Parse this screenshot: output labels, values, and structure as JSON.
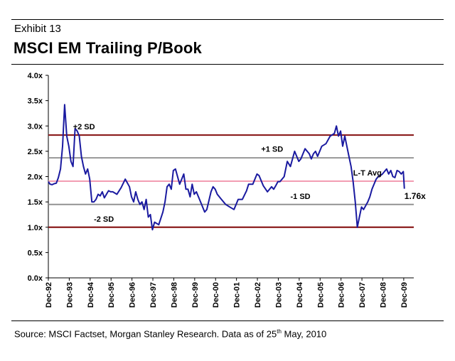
{
  "header": {
    "exhibit": "Exhibit 13",
    "title": "MSCI EM Trailing P/Book"
  },
  "footer": {
    "source_prefix": "Source: MSCI Factset, Morgan Stanley Research. Data as of 25",
    "source_sup": "th",
    "source_suffix": " May, 2010"
  },
  "colors": {
    "series": "#1a1aa0",
    "sd2": "#8b1c1c",
    "sd1": "#8c8c8c",
    "avg": "#f2a0b4",
    "axis": "#000000"
  },
  "chart_data": {
    "type": "line",
    "title": "MSCI EM Trailing P/Book",
    "xlabel": "",
    "ylabel": "",
    "ylim": [
      0,
      4
    ],
    "xlim": [
      1992.92,
      2010.4
    ],
    "y_ticks": [
      "0.0x",
      "0.5x",
      "1.0x",
      "1.5x",
      "2.0x",
      "2.5x",
      "3.0x",
      "3.5x",
      "4.0x"
    ],
    "x_ticks": [
      {
        "label": "Dec-92",
        "x": 1992.92
      },
      {
        "label": "Dec-93",
        "x": 1993.92
      },
      {
        "label": "Dec-94",
        "x": 1994.92
      },
      {
        "label": "Dec-95",
        "x": 1995.92
      },
      {
        "label": "Dec-96",
        "x": 1996.92
      },
      {
        "label": "Dec-97",
        "x": 1997.92
      },
      {
        "label": "Dec-98",
        "x": 1998.92
      },
      {
        "label": "Dec-99",
        "x": 1999.92
      },
      {
        "label": "Dec-00",
        "x": 2000.92
      },
      {
        "label": "Dec-01",
        "x": 2001.92
      },
      {
        "label": "Dec-02",
        "x": 2002.92
      },
      {
        "label": "Dec-03",
        "x": 2003.92
      },
      {
        "label": "Dec-04",
        "x": 2004.92
      },
      {
        "label": "Dec-05",
        "x": 2005.92
      },
      {
        "label": "Dec-06",
        "x": 2006.92
      },
      {
        "label": "Dec-07",
        "x": 2007.92
      },
      {
        "label": "Dec-08",
        "x": 2008.92
      },
      {
        "label": "Dec-09",
        "x": 2009.92
      }
    ],
    "reference_lines": [
      {
        "name": "+2 SD",
        "value": 2.82,
        "style": "sd2"
      },
      {
        "name": "+1 SD",
        "value": 2.37,
        "style": "sd1"
      },
      {
        "name": "L-T Avg",
        "value": 1.91,
        "style": "avg"
      },
      {
        "name": "-1 SD",
        "value": 1.45,
        "style": "sd1"
      },
      {
        "name": "-2 SD",
        "value": 1.0,
        "style": "sd2"
      }
    ],
    "reference_labels": [
      {
        "text": "+2 SD",
        "x": 1994.1,
        "y": 2.93
      },
      {
        "text": "+1 SD",
        "x": 2003.1,
        "y": 2.49
      },
      {
        "text": "L-T Avg",
        "x": 2007.5,
        "y": 2.02
      },
      {
        "text": "-1 SD",
        "x": 2004.5,
        "y": 1.56
      },
      {
        "text": "-2 SD",
        "x": 1995.1,
        "y": 1.11
      }
    ],
    "end_label": {
      "text": "1.76x",
      "x": 2009.95,
      "y": 1.56
    },
    "series": [
      {
        "name": "MSCI EM Trailing P/Book",
        "x": [
          1992.92,
          1993.0,
          1993.1,
          1993.2,
          1993.3,
          1993.4,
          1993.5,
          1993.6,
          1993.7,
          1993.8,
          1993.9,
          1994.0,
          1994.1,
          1994.2,
          1994.3,
          1994.4,
          1994.5,
          1994.6,
          1994.7,
          1994.8,
          1994.9,
          1995.0,
          1995.1,
          1995.2,
          1995.3,
          1995.4,
          1995.5,
          1995.6,
          1995.7,
          1995.8,
          1995.9,
          1996.0,
          1996.2,
          1996.4,
          1996.6,
          1996.8,
          1996.9,
          1997.0,
          1997.1,
          1997.2,
          1997.3,
          1997.4,
          1997.5,
          1997.6,
          1997.7,
          1997.8,
          1997.9,
          1998.0,
          1998.2,
          1998.4,
          1998.5,
          1998.6,
          1998.7,
          1998.8,
          1998.9,
          1999.0,
          1999.2,
          1999.4,
          1999.5,
          1999.6,
          1999.7,
          1999.8,
          1999.9,
          2000.0,
          2000.2,
          2000.4,
          2000.5,
          2000.7,
          2000.8,
          2000.9,
          2001.0,
          2001.2,
          2001.4,
          2001.6,
          2001.8,
          2001.9,
          2002.0,
          2002.2,
          2002.4,
          2002.5,
          2002.7,
          2002.9,
          2003.0,
          2003.2,
          2003.4,
          2003.6,
          2003.7,
          2003.8,
          2003.9,
          2004.0,
          2004.2,
          2004.35,
          2004.5,
          2004.7,
          2004.9,
          2005.0,
          2005.2,
          2005.4,
          2005.5,
          2005.6,
          2005.7,
          2005.8,
          2005.9,
          2006.0,
          2006.2,
          2006.4,
          2006.6,
          2006.7,
          2006.8,
          2006.9,
          2007.0,
          2007.1,
          2007.2,
          2007.3,
          2007.4,
          2007.5,
          2007.6,
          2007.7,
          2007.8,
          2007.9,
          2008.0,
          2008.2,
          2008.3,
          2008.4,
          2008.5,
          2008.6,
          2008.7,
          2008.8,
          2008.9,
          2009.0,
          2009.1,
          2009.2,
          2009.3,
          2009.4,
          2009.5,
          2009.6,
          2009.7,
          2009.8,
          2009.9,
          2009.95
        ],
        "y": [
          1.9,
          1.85,
          1.84,
          1.86,
          1.87,
          1.98,
          2.15,
          2.6,
          3.42,
          2.8,
          2.6,
          2.3,
          2.2,
          2.95,
          2.9,
          2.8,
          2.4,
          2.2,
          2.05,
          2.15,
          1.95,
          1.5,
          1.5,
          1.55,
          1.65,
          1.62,
          1.7,
          1.58,
          1.65,
          1.72,
          1.7,
          1.7,
          1.65,
          1.78,
          1.95,
          1.8,
          1.6,
          1.5,
          1.7,
          1.55,
          1.45,
          1.5,
          1.35,
          1.55,
          1.2,
          1.25,
          0.95,
          1.1,
          1.05,
          1.3,
          1.5,
          1.8,
          1.85,
          1.75,
          2.12,
          2.15,
          1.85,
          2.05,
          1.75,
          1.75,
          1.6,
          1.85,
          1.65,
          1.7,
          1.5,
          1.3,
          1.35,
          1.7,
          1.8,
          1.75,
          1.65,
          1.55,
          1.45,
          1.4,
          1.35,
          1.45,
          1.55,
          1.55,
          1.72,
          1.85,
          1.85,
          2.05,
          2.02,
          1.82,
          1.7,
          1.8,
          1.75,
          1.82,
          1.9,
          1.9,
          2.0,
          2.3,
          2.2,
          2.5,
          2.3,
          2.35,
          2.55,
          2.45,
          2.35,
          2.45,
          2.5,
          2.4,
          2.5,
          2.6,
          2.65,
          2.8,
          2.85,
          3.0,
          2.8,
          2.9,
          2.6,
          2.8,
          2.6,
          2.4,
          2.2,
          1.9,
          1.5,
          1.0,
          1.2,
          1.4,
          1.35,
          1.5,
          1.6,
          1.75,
          1.85,
          1.95,
          2.0,
          2.02,
          2.05,
          2.1,
          2.15,
          2.05,
          2.12,
          2.0,
          1.98,
          2.12,
          2.1,
          2.05,
          2.1,
          1.76
        ]
      }
    ]
  }
}
